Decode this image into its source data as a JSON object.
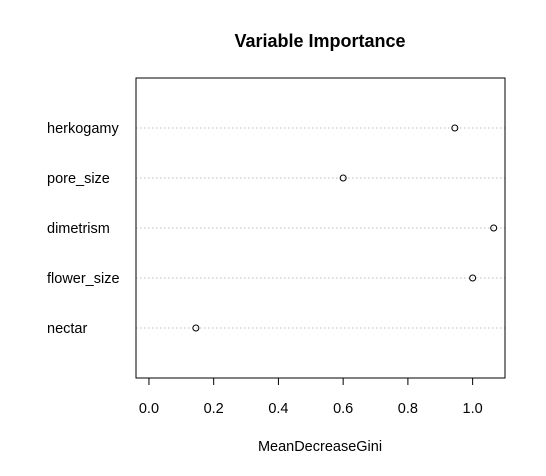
{
  "chart_data": {
    "type": "scatter",
    "title": "Variable Importance",
    "xlabel": "MeanDecreaseGini",
    "ylabel": "",
    "xlim": [
      -0.04,
      1.1
    ],
    "xticks": [
      "0.0",
      "0.2",
      "0.4",
      "0.6",
      "0.8",
      "1.0"
    ],
    "tick_values": [
      0.0,
      0.2,
      0.4,
      0.6,
      0.8,
      1.0
    ],
    "categories": [
      "herkogamy",
      "pore_size",
      "dimetrism",
      "flower_size",
      "nectar"
    ],
    "values": [
      0.945,
      0.6,
      1.065,
      1.0,
      0.145
    ],
    "grid": "dotted horizontal lines",
    "marker": "open circle",
    "colors": {
      "points": "#000000",
      "grid": "#bebebe",
      "frame": "#000000"
    }
  }
}
